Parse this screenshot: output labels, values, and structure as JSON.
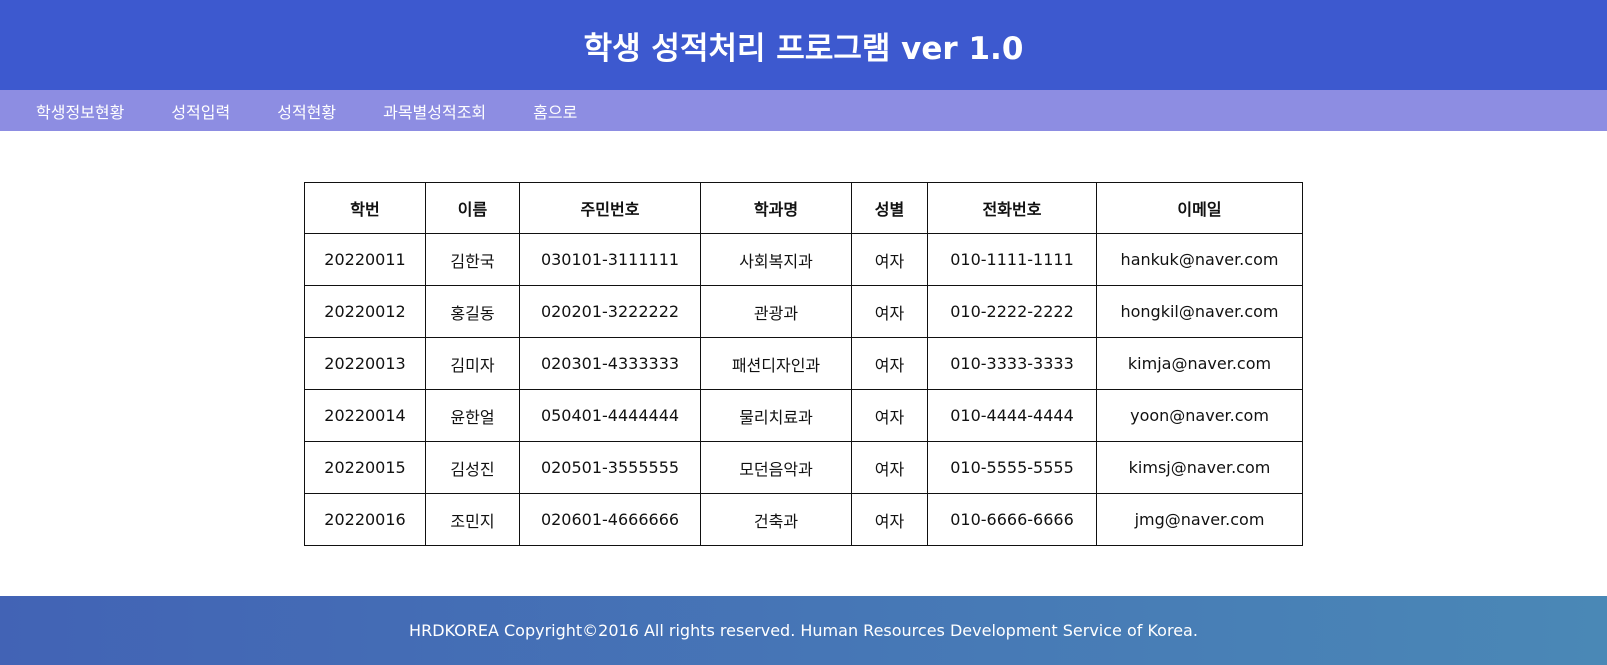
{
  "header": {
    "title": "학생 성적처리 프로그램 ver 1.0"
  },
  "nav": [
    "학생정보현황",
    "성적입력",
    "성적현황",
    "과목별성적조회",
    "홈으로"
  ],
  "table": {
    "columns": [
      "학번",
      "이름",
      "주민번호",
      "학과명",
      "성별",
      "전화번호",
      "이메일"
    ],
    "rows": [
      [
        "20220011",
        "김한국",
        "030101-3111111",
        "사회복지과",
        "여자",
        "010-1111-1111",
        "hankuk@naver.com"
      ],
      [
        "20220012",
        "홍길동",
        "020201-3222222",
        "관광과",
        "여자",
        "010-2222-2222",
        "hongkil@naver.com"
      ],
      [
        "20220013",
        "김미자",
        "020301-4333333",
        "패션디자인과",
        "여자",
        "010-3333-3333",
        "kimja@naver.com"
      ],
      [
        "20220014",
        "윤한얼",
        "050401-4444444",
        "물리치료과",
        "여자",
        "010-4444-4444",
        "yoon@naver.com"
      ],
      [
        "20220015",
        "김성진",
        "020501-3555555",
        "모던음악과",
        "여자",
        "010-5555-5555",
        "kimsj@naver.com"
      ],
      [
        "20220016",
        "조민지",
        "020601-4666666",
        "건축과",
        "여자",
        "010-6666-6666",
        "jmg@naver.com"
      ]
    ]
  },
  "footer": {
    "text": "HRDKOREA Copyright©2016 All rights reserved. Human Resources Development Service of Korea."
  }
}
